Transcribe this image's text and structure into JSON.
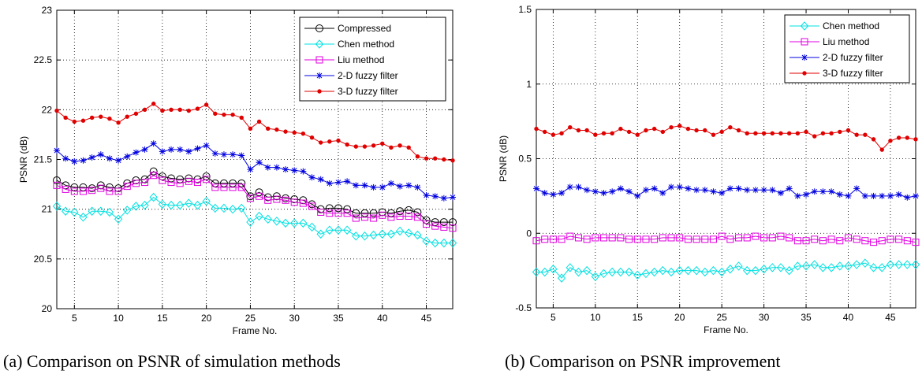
{
  "captions": {
    "a": "(a) Comparison on PSNR of simulation methods",
    "b": "(b) Comparison on PSNR improvement"
  },
  "chart_data": [
    {
      "type": "line",
      "title": "",
      "xlabel": "Frame No.",
      "ylabel": "PSNR (dB)",
      "xlim": [
        3,
        48
      ],
      "ylim": [
        20,
        23
      ],
      "xticks": [
        5,
        10,
        15,
        20,
        25,
        30,
        35,
        40,
        45
      ],
      "yticks": [
        20,
        20.5,
        21,
        21.5,
        22,
        22.5,
        23
      ],
      "ytick_labels": [
        "20",
        "20.5",
        "21",
        "21.5",
        "22",
        "22.5",
        "23"
      ],
      "grid": true,
      "legend_position": "top-right",
      "x": [
        3,
        4,
        5,
        6,
        7,
        8,
        9,
        10,
        11,
        12,
        13,
        14,
        15,
        16,
        17,
        18,
        19,
        20,
        21,
        22,
        23,
        24,
        25,
        26,
        27,
        28,
        29,
        30,
        31,
        32,
        33,
        34,
        35,
        36,
        37,
        38,
        39,
        40,
        41,
        42,
        43,
        44,
        45,
        46,
        47,
        48
      ],
      "series": [
        {
          "name": "Compressed",
          "color": "#000000",
          "marker": "circle",
          "values": [
            21.29,
            21.24,
            21.22,
            21.22,
            21.21,
            21.24,
            21.22,
            21.21,
            21.26,
            21.29,
            21.3,
            21.38,
            21.33,
            21.31,
            21.3,
            21.31,
            21.3,
            21.33,
            21.26,
            21.26,
            21.26,
            21.26,
            21.13,
            21.17,
            21.12,
            21.13,
            21.11,
            21.1,
            21.09,
            21.05,
            21.0,
            21.01,
            21.01,
            21.0,
            20.96,
            20.96,
            20.96,
            20.97,
            20.96,
            20.98,
            20.99,
            20.97,
            20.89,
            20.87,
            20.87,
            20.87
          ]
        },
        {
          "name": "Chen method",
          "color": "#00e0e0",
          "marker": "diamond",
          "values": [
            21.03,
            20.98,
            20.97,
            20.92,
            20.98,
            20.98,
            20.97,
            20.9,
            20.99,
            21.03,
            21.04,
            21.12,
            21.05,
            21.04,
            21.04,
            21.06,
            21.04,
            21.08,
            21.01,
            21.01,
            21.0,
            21.01,
            20.87,
            20.93,
            20.9,
            20.88,
            20.86,
            20.86,
            20.86,
            20.82,
            20.75,
            20.79,
            20.79,
            20.79,
            20.73,
            20.73,
            20.74,
            20.75,
            20.75,
            20.78,
            20.76,
            20.74,
            20.68,
            20.66,
            20.66,
            20.66
          ]
        },
        {
          "name": "Liu method",
          "color": "#e000e0",
          "marker": "square",
          "values": [
            21.24,
            21.2,
            21.18,
            21.18,
            21.19,
            21.21,
            21.18,
            21.18,
            21.23,
            21.26,
            21.27,
            21.34,
            21.29,
            21.27,
            21.26,
            21.28,
            21.27,
            21.3,
            21.22,
            21.22,
            21.22,
            21.22,
            21.11,
            21.13,
            21.09,
            21.1,
            21.09,
            21.07,
            21.06,
            21.03,
            20.97,
            20.96,
            20.96,
            20.96,
            20.91,
            20.92,
            20.91,
            20.94,
            20.92,
            20.93,
            20.93,
            20.92,
            20.85,
            20.83,
            20.82,
            20.81
          ]
        },
        {
          "name": "2-D fuzzy filter",
          "color": "#0000e0",
          "marker": "star",
          "values": [
            21.59,
            21.51,
            21.48,
            21.49,
            21.52,
            21.55,
            21.51,
            21.49,
            21.53,
            21.57,
            21.6,
            21.66,
            21.58,
            21.6,
            21.6,
            21.58,
            21.61,
            21.64,
            21.56,
            21.55,
            21.55,
            21.54,
            21.4,
            21.47,
            21.42,
            21.42,
            21.4,
            21.39,
            21.38,
            21.32,
            21.3,
            21.26,
            21.27,
            21.28,
            21.24,
            21.24,
            21.22,
            21.22,
            21.26,
            21.23,
            21.24,
            21.22,
            21.14,
            21.13,
            21.11,
            21.12
          ]
        },
        {
          "name": "3-D fuzzy filter",
          "color": "#e00000",
          "marker": "dot",
          "values": [
            21.99,
            21.92,
            21.88,
            21.89,
            21.92,
            21.93,
            21.91,
            21.87,
            21.93,
            21.96,
            22.0,
            22.06,
            21.99,
            22.0,
            22.0,
            21.99,
            22.01,
            22.05,
            21.96,
            21.95,
            21.95,
            21.92,
            21.81,
            21.88,
            21.81,
            21.8,
            21.78,
            21.77,
            21.76,
            21.72,
            21.67,
            21.68,
            21.69,
            21.65,
            21.63,
            21.63,
            21.64,
            21.66,
            21.62,
            21.64,
            21.62,
            21.53,
            21.51,
            21.51,
            21.5,
            21.49
          ]
        }
      ]
    },
    {
      "type": "line",
      "title": "",
      "xlabel": "Frame No.",
      "ylabel": "PSNR (dB)",
      "xlim": [
        3,
        48
      ],
      "ylim": [
        -0.5,
        1.5
      ],
      "xticks": [
        5,
        10,
        15,
        20,
        25,
        30,
        35,
        40,
        45
      ],
      "yticks": [
        -0.5,
        0,
        0.5,
        1,
        1.5
      ],
      "ytick_labels": [
        "-0.5",
        "0",
        "0.5",
        "1",
        "1.5"
      ],
      "grid": true,
      "legend_position": "top-right",
      "x": [
        3,
        4,
        5,
        6,
        7,
        8,
        9,
        10,
        11,
        12,
        13,
        14,
        15,
        16,
        17,
        18,
        19,
        20,
        21,
        22,
        23,
        24,
        25,
        26,
        27,
        28,
        29,
        30,
        31,
        32,
        33,
        34,
        35,
        36,
        37,
        38,
        39,
        40,
        41,
        42,
        43,
        44,
        45,
        46,
        47,
        48
      ],
      "series": [
        {
          "name": "Chen method",
          "color": "#00e0e0",
          "marker": "diamond",
          "values": [
            -0.26,
            -0.26,
            -0.24,
            -0.3,
            -0.23,
            -0.26,
            -0.25,
            -0.29,
            -0.27,
            -0.26,
            -0.26,
            -0.26,
            -0.28,
            -0.27,
            -0.26,
            -0.25,
            -0.26,
            -0.25,
            -0.25,
            -0.25,
            -0.26,
            -0.25,
            -0.26,
            -0.24,
            -0.22,
            -0.25,
            -0.25,
            -0.24,
            -0.23,
            -0.23,
            -0.25,
            -0.22,
            -0.22,
            -0.21,
            -0.23,
            -0.23,
            -0.22,
            -0.22,
            -0.21,
            -0.2,
            -0.23,
            -0.23,
            -0.21,
            -0.21,
            -0.21,
            -0.21
          ]
        },
        {
          "name": "Liu method",
          "color": "#e000e0",
          "marker": "square",
          "values": [
            -0.05,
            -0.04,
            -0.04,
            -0.04,
            -0.02,
            -0.03,
            -0.04,
            -0.03,
            -0.03,
            -0.03,
            -0.03,
            -0.04,
            -0.04,
            -0.04,
            -0.04,
            -0.03,
            -0.03,
            -0.03,
            -0.04,
            -0.04,
            -0.04,
            -0.04,
            -0.02,
            -0.04,
            -0.03,
            -0.03,
            -0.02,
            -0.03,
            -0.03,
            -0.02,
            -0.03,
            -0.05,
            -0.05,
            -0.04,
            -0.05,
            -0.04,
            -0.05,
            -0.03,
            -0.04,
            -0.05,
            -0.06,
            -0.05,
            -0.04,
            -0.04,
            -0.05,
            -0.06
          ]
        },
        {
          "name": "2-D fuzzy filter",
          "color": "#0000e0",
          "marker": "star",
          "values": [
            0.3,
            0.27,
            0.26,
            0.27,
            0.31,
            0.31,
            0.29,
            0.28,
            0.27,
            0.28,
            0.3,
            0.28,
            0.25,
            0.29,
            0.3,
            0.27,
            0.31,
            0.31,
            0.3,
            0.29,
            0.29,
            0.28,
            0.27,
            0.3,
            0.3,
            0.29,
            0.29,
            0.29,
            0.29,
            0.27,
            0.3,
            0.25,
            0.26,
            0.28,
            0.28,
            0.28,
            0.26,
            0.25,
            0.3,
            0.25,
            0.25,
            0.25,
            0.25,
            0.26,
            0.24,
            0.25
          ]
        },
        {
          "name": "3-D fuzzy filter",
          "color": "#e00000",
          "marker": "dot",
          "values": [
            0.7,
            0.68,
            0.66,
            0.67,
            0.71,
            0.69,
            0.69,
            0.66,
            0.67,
            0.67,
            0.7,
            0.68,
            0.66,
            0.69,
            0.7,
            0.68,
            0.71,
            0.72,
            0.7,
            0.69,
            0.69,
            0.66,
            0.68,
            0.71,
            0.69,
            0.67,
            0.67,
            0.67,
            0.67,
            0.67,
            0.67,
            0.67,
            0.68,
            0.65,
            0.67,
            0.67,
            0.68,
            0.69,
            0.66,
            0.66,
            0.63,
            0.56,
            0.62,
            0.64,
            0.64,
            0.63
          ]
        }
      ]
    }
  ]
}
